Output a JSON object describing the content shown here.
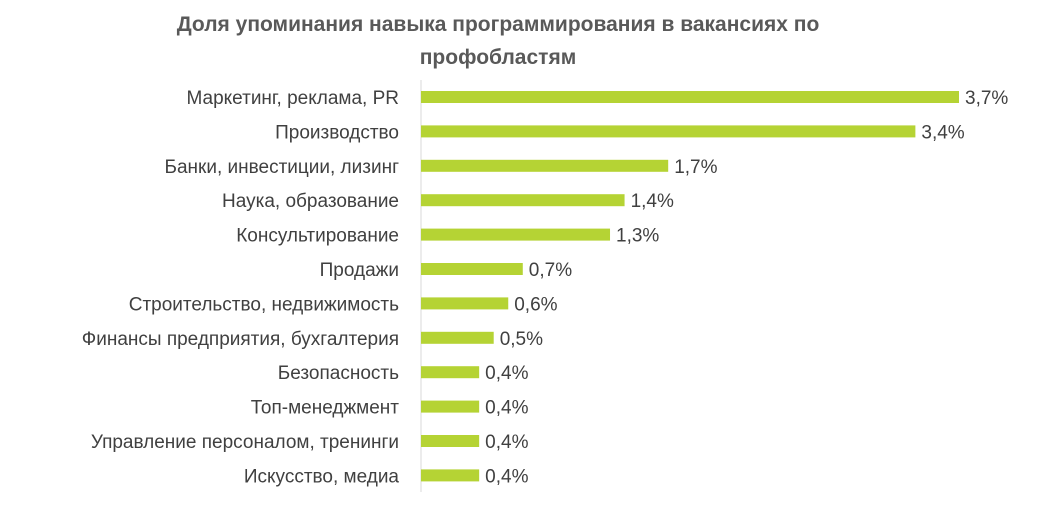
{
  "chart_data": {
    "type": "bar",
    "orientation": "horizontal",
    "title_lines": [
      "Доля упоминания навыка программирования в вакансиях по",
      "профобластям"
    ],
    "categories": [
      "Маркетинг, реклама, PR",
      "Производство",
      "Банки, инвестиции, лизинг",
      "Наука, образование",
      "Консультирование",
      "Продажи",
      "Строительство, недвижимость",
      "Финансы предприятия, бухгалтерия",
      "Безопасность",
      "Топ-менеджмент",
      "Управление персоналом, тренинги",
      "Искусство, медиа"
    ],
    "values": [
      3.7,
      3.4,
      1.7,
      1.4,
      1.3,
      0.7,
      0.6,
      0.5,
      0.4,
      0.4,
      0.4,
      0.4
    ],
    "value_labels": [
      "3,7%",
      "3,4%",
      "1,7%",
      "1,4%",
      "1,3%",
      "0,7%",
      "0,6%",
      "0,5%",
      "0,4%",
      "0,4%",
      "0,4%",
      "0,4%"
    ],
    "unit": "%",
    "xlim": [
      0,
      3.7
    ],
    "grid": false,
    "legend": "none",
    "bar_color": "#b5d334"
  }
}
